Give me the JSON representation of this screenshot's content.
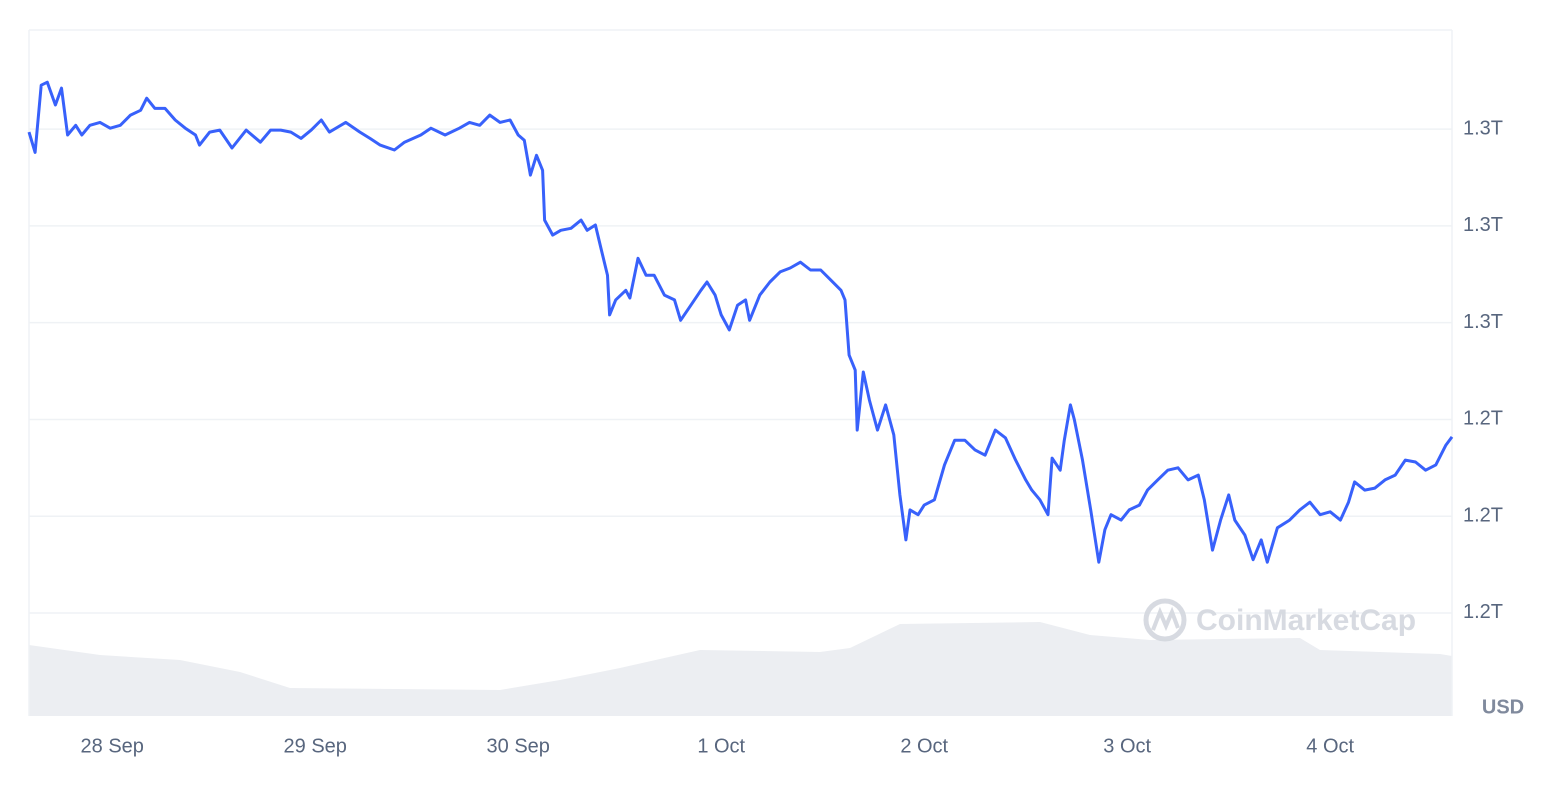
{
  "chart_data": {
    "type": "line",
    "unit_label": "USD",
    "watermark": "CoinMarketCap",
    "x": [
      -0.41,
      -0.38,
      -0.35,
      -0.32,
      -0.28,
      -0.25,
      -0.22,
      -0.18,
      -0.15,
      -0.11,
      -0.06,
      -0.01,
      0.04,
      0.09,
      0.14,
      0.17,
      0.21,
      0.26,
      0.31,
      0.36,
      0.41,
      0.43,
      0.48,
      0.53,
      0.59,
      0.66,
      0.73,
      0.78,
      0.83,
      0.88,
      0.93,
      0.98,
      1.03,
      1.07,
      1.15,
      1.22,
      1.27,
      1.32,
      1.39,
      1.44,
      1.52,
      1.57,
      1.64,
      1.71,
      1.76,
      1.81,
      1.86,
      1.91,
      1.96,
      2.0,
      2.03,
      2.06,
      2.09,
      2.12,
      2.13,
      2.17,
      2.21,
      2.26,
      2.31,
      2.34,
      2.38,
      2.41,
      2.44,
      2.45,
      2.48,
      2.53,
      2.55,
      2.59,
      2.63,
      2.67,
      2.72,
      2.77,
      2.8,
      2.85,
      2.9,
      2.93,
      2.97,
      3.0,
      3.04,
      3.08,
      3.12,
      3.14,
      3.19,
      3.24,
      3.29,
      3.34,
      3.39,
      3.44,
      3.49,
      3.54,
      3.59,
      3.61,
      3.63,
      3.66,
      3.67,
      3.7,
      3.73,
      3.77,
      3.81,
      3.85,
      3.88,
      3.91,
      3.93,
      3.97,
      4.0,
      4.05,
      4.1,
      4.15,
      4.2,
      4.25,
      4.3,
      4.35,
      4.4,
      4.45,
      4.5,
      4.53,
      4.57,
      4.61,
      4.63,
      4.67,
      4.69,
      4.72,
      4.74,
      4.78,
      4.82,
      4.86,
      4.89,
      4.92,
      4.97,
      5.01,
      5.06,
      5.1,
      5.15,
      5.2,
      5.25,
      5.3,
      5.35,
      5.38,
      5.42,
      5.46,
      5.5,
      5.53,
      5.58,
      5.62,
      5.66,
      5.69,
      5.74,
      5.8,
      5.85,
      5.9,
      5.95,
      6.0,
      6.05,
      6.09,
      6.12,
      6.17,
      6.22,
      6.27,
      6.32,
      6.37,
      6.42,
      6.47,
      6.52,
      6.57,
      6.6
    ],
    "series": [
      {
        "color": "#3861fb",
        "values": [
          1.2994,
          1.2952,
          1.3091,
          1.3097,
          1.305,
          1.3085,
          1.2988,
          1.3008,
          1.2988,
          1.3008,
          1.3014,
          1.3002,
          1.3008,
          1.3029,
          1.3039,
          1.3064,
          1.3043,
          1.3043,
          1.3019,
          1.3002,
          1.2988,
          1.2967,
          1.2994,
          1.2998,
          1.2961,
          1.2998,
          1.2973,
          1.2998,
          1.2998,
          1.2994,
          1.2981,
          1.2998,
          1.3019,
          1.2994,
          1.3014,
          1.2994,
          1.2981,
          1.2967,
          1.2957,
          1.2973,
          1.2988,
          1.3002,
          1.2988,
          1.3002,
          1.3014,
          1.3008,
          1.3029,
          1.3014,
          1.3019,
          1.2988,
          1.2977,
          1.2905,
          1.2946,
          1.2915,
          1.2812,
          1.2781,
          1.2791,
          1.2795,
          1.2812,
          1.2791,
          1.2802,
          1.275,
          1.2698,
          1.2616,
          1.2647,
          1.2667,
          1.2651,
          1.2733,
          1.2698,
          1.2698,
          1.2657,
          1.2647,
          1.2605,
          1.2636,
          1.2667,
          1.2684,
          1.2657,
          1.2616,
          1.2585,
          1.2636,
          1.2647,
          1.2605,
          1.2657,
          1.2684,
          1.2705,
          1.2713,
          1.2725,
          1.2709,
          1.2709,
          1.2688,
          1.2667,
          1.2647,
          1.2533,
          1.2502,
          1.2378,
          1.2498,
          1.244,
          1.2378,
          1.243,
          1.2368,
          1.2244,
          1.2151,
          1.2213,
          1.2203,
          1.2223,
          1.2234,
          1.2306,
          1.2357,
          1.2357,
          1.2337,
          1.2326,
          1.2378,
          1.2362,
          1.2316,
          1.2275,
          1.2254,
          1.2234,
          1.2203,
          1.232,
          1.2295,
          1.2357,
          1.243,
          1.2399,
          1.2316,
          1.2213,
          1.2105,
          1.2172,
          1.2203,
          1.2192,
          1.2213,
          1.2223,
          1.2254,
          1.2275,
          1.2295,
          1.23,
          1.2275,
          1.2285,
          1.2234,
          1.213,
          1.2192,
          1.2244,
          1.2192,
          1.2161,
          1.211,
          1.2151,
          1.2105,
          1.2176,
          1.2192,
          1.2213,
          1.2229,
          1.2203,
          1.2209,
          1.2192,
          1.2229,
          1.2271,
          1.2254,
          1.2258,
          1.2275,
          1.2285,
          1.2316,
          1.2312,
          1.2295,
          1.2306,
          1.2347,
          1.2364
        ]
      }
    ],
    "xlim": [
      -0.41,
      6.6
    ],
    "xticks": [
      {
        "value": 0,
        "label": "28 Sep"
      },
      {
        "value": 1,
        "label": "29 Sep"
      },
      {
        "value": 2,
        "label": "30 Sep"
      },
      {
        "value": 3,
        "label": "1 Oct"
      },
      {
        "value": 4,
        "label": "2 Oct"
      },
      {
        "value": 5,
        "label": "3 Oct"
      },
      {
        "value": 6,
        "label": "4 Oct"
      }
    ],
    "ylim": [
      1.1787,
      1.3205
    ],
    "yticks": [
      {
        "value": 1.3,
        "label": "1.3T"
      },
      {
        "value": 1.28,
        "label": "1.3T"
      },
      {
        "value": 1.26,
        "label": "1.3T"
      },
      {
        "value": 1.24,
        "label": "1.2T"
      },
      {
        "value": 1.22,
        "label": "1.2T"
      },
      {
        "value": 1.2,
        "label": "1.2T"
      }
    ],
    "grid": true
  }
}
